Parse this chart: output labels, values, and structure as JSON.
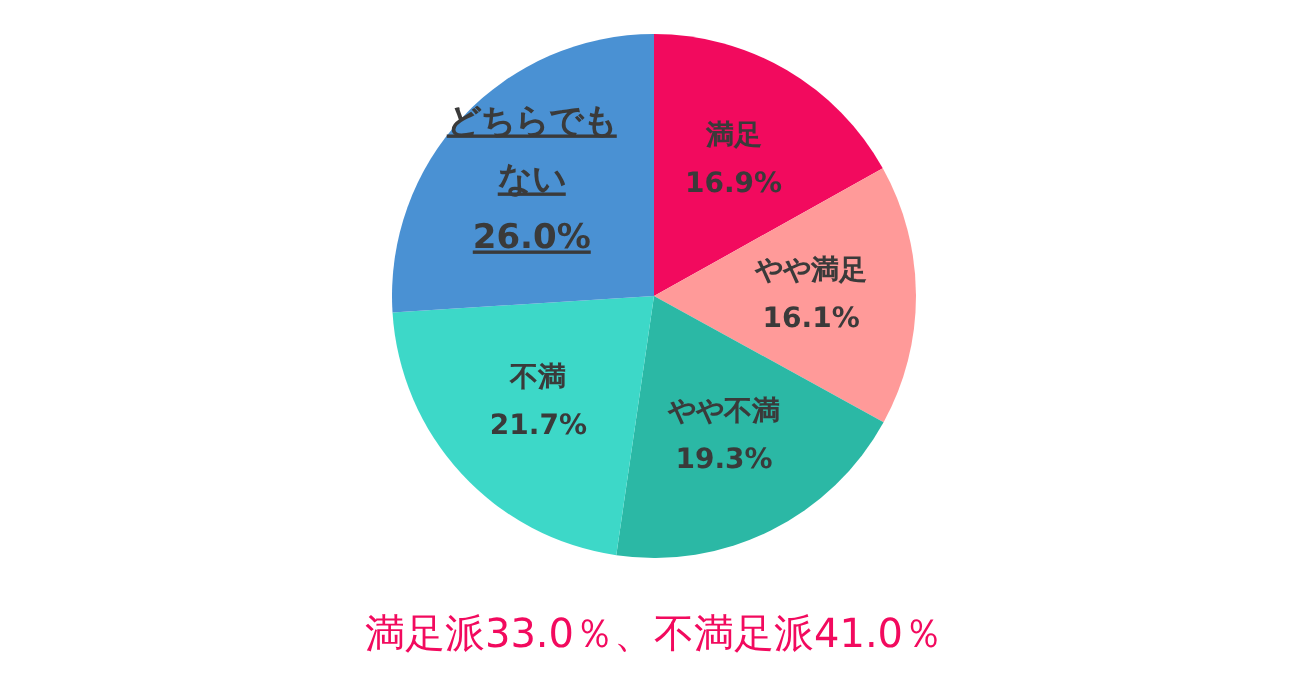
{
  "chart_data": {
    "type": "pie",
    "categories": [
      "満足",
      "やや満足",
      "やや不満",
      "不満",
      "どちらでもない"
    ],
    "values": [
      16.9,
      16.1,
      19.3,
      21.7,
      26.0
    ],
    "colors": [
      "#f20a5e",
      "#ff9a99",
      "#2bb8a5",
      "#3dd8c8",
      "#4a91d3"
    ],
    "value_labels": [
      "16.9%",
      "16.1%",
      "19.3%",
      "21.7%",
      "26.0%"
    ],
    "annotations": [
      "満足派33.0％、不満足派41.0％"
    ]
  }
}
